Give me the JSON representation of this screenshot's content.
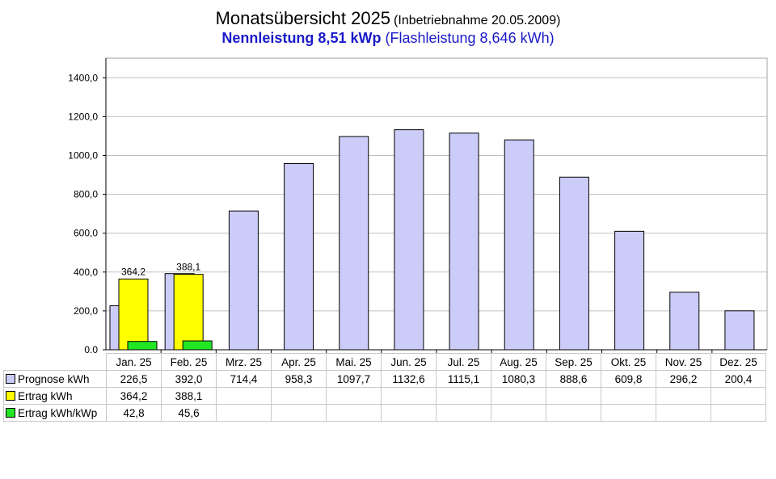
{
  "header": {
    "title": "Monatsübersicht 2025",
    "title_note": "(Inbetriebnahme  20.05.2009)",
    "subtitle_bold": "Nennleistung 8,51 kWp",
    "subtitle_rest": "(Flashleistung 8,646 kWh)"
  },
  "colors": {
    "prognose": "#ccccf9",
    "ertrag": "#ffff00",
    "ertrag_kwp": "#22e622",
    "title_blue": "#1a1ac8"
  },
  "chart_data": {
    "type": "bar",
    "title": "Monatsübersicht 2025",
    "categories": [
      "Jan. 25",
      "Feb. 25",
      "Mrz. 25",
      "Apr. 25",
      "Mai. 25",
      "Jun. 25",
      "Jul. 25",
      "Aug. 25",
      "Sep. 25",
      "Okt. 25",
      "Nov. 25",
      "Dez. 25"
    ],
    "ylim": [
      0,
      1500
    ],
    "yticks": [
      "0,0",
      "200,0",
      "400,0",
      "600,0",
      "800,0",
      "1000,0",
      "1200,0",
      "1400,0"
    ],
    "grid": true,
    "legend_position": "table-left",
    "series": [
      {
        "name": "Prognose kWh",
        "values": [
          226.5,
          392.0,
          714.4,
          958.3,
          1097.7,
          1132.6,
          1115.1,
          1080.3,
          888.6,
          609.8,
          296.2,
          200.4
        ],
        "labels": [
          "226,5",
          "392,0",
          "714,4",
          "958,3",
          "1097,7",
          "1132,6",
          "1115,1",
          "1080,3",
          "888,6",
          "609,8",
          "296,2",
          "200,4"
        ]
      },
      {
        "name": "Ertrag kWh",
        "values": [
          364.2,
          388.1,
          null,
          null,
          null,
          null,
          null,
          null,
          null,
          null,
          null,
          null
        ],
        "labels": [
          "364,2",
          "388,1",
          "",
          "",
          "",
          "",
          "",
          "",
          "",
          "",
          "",
          ""
        ]
      },
      {
        "name": "Ertrag kWh/kWp",
        "values": [
          42.8,
          45.6,
          null,
          null,
          null,
          null,
          null,
          null,
          null,
          null,
          null,
          null
        ],
        "labels": [
          "42,8",
          "45,6",
          "",
          "",
          "",
          "",
          "",
          "",
          "",
          "",
          "",
          ""
        ]
      }
    ],
    "data_labels": [
      "364,2",
      "388,1"
    ]
  }
}
